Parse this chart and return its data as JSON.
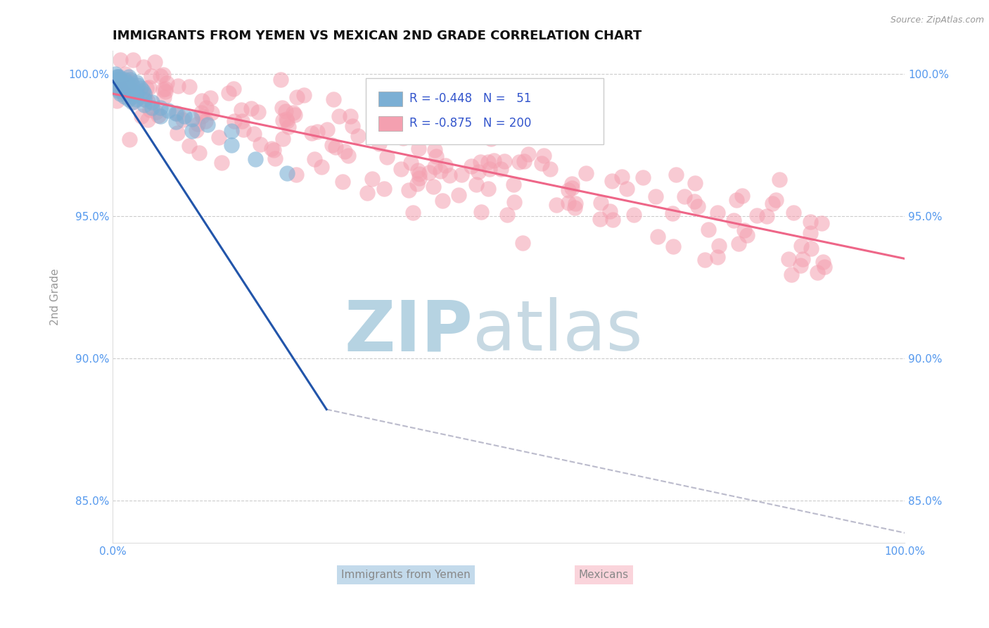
{
  "title": "IMMIGRANTS FROM YEMEN VS MEXICAN 2ND GRADE CORRELATION CHART",
  "source": "Source: ZipAtlas.com",
  "ylabel": "2nd Grade",
  "xlim": [
    0.0,
    1.0
  ],
  "ylim": [
    0.835,
    1.008
  ],
  "yticks": [
    0.85,
    0.9,
    0.95,
    1.0
  ],
  "ytick_labels": [
    "85.0%",
    "90.0%",
    "95.0%",
    "100.0%"
  ],
  "xticks": [
    0.0,
    1.0
  ],
  "xtick_labels": [
    "0.0%",
    "100.0%"
  ],
  "legend_R_blue": "-0.448",
  "legend_N_blue": "51",
  "legend_R_pink": "-0.875",
  "legend_N_pink": "200",
  "blue_color": "#7BAFD4",
  "pink_color": "#F4A0B0",
  "blue_line_color": "#2255AA",
  "pink_line_color": "#EE6688",
  "dashed_line_color": "#BBBBCC",
  "background_color": "#FFFFFF",
  "title_color": "#111111",
  "title_fontsize": 13,
  "tick_color": "#5599EE",
  "legend_text_color": "#3355CC",
  "watermark_zip_color": "#AACCDD",
  "watermark_atlas_color": "#99BBCC",
  "blue_x_points": [
    0.005,
    0.008,
    0.01,
    0.012,
    0.015,
    0.018,
    0.02,
    0.022,
    0.025,
    0.03,
    0.032,
    0.035,
    0.038,
    0.04,
    0.005,
    0.008,
    0.01,
    0.015,
    0.02,
    0.025,
    0.003,
    0.006,
    0.009,
    0.012,
    0.016,
    0.02,
    0.025,
    0.03,
    0.04,
    0.05,
    0.06,
    0.07,
    0.08,
    0.09,
    0.1,
    0.12,
    0.15,
    0.005,
    0.01,
    0.015,
    0.02,
    0.025,
    0.03,
    0.04,
    0.05,
    0.06,
    0.08,
    0.1,
    0.15,
    0.18,
    0.22
  ],
  "blue_y_points": [
    0.998,
    0.999,
    0.997,
    0.996,
    0.998,
    0.997,
    0.999,
    0.998,
    0.996,
    0.997,
    0.996,
    0.995,
    0.994,
    0.993,
    0.995,
    0.994,
    0.993,
    0.992,
    0.991,
    0.99,
    1.0,
    0.999,
    0.998,
    0.997,
    0.996,
    0.995,
    0.994,
    0.993,
    0.991,
    0.99,
    0.988,
    0.987,
    0.986,
    0.985,
    0.984,
    0.982,
    0.98,
    0.999,
    0.997,
    0.995,
    0.993,
    0.992,
    0.991,
    0.989,
    0.988,
    0.985,
    0.983,
    0.98,
    0.975,
    0.97,
    0.965
  ],
  "blue_line_x": [
    0.0,
    0.27
  ],
  "blue_line_y": [
    0.9975,
    0.882
  ],
  "pink_line_x": [
    0.0,
    1.0
  ],
  "pink_line_y": [
    0.993,
    0.935
  ],
  "dash_line_x": [
    0.27,
    1.01
  ],
  "dash_line_y": [
    0.882,
    0.838
  ],
  "n_pink": 200,
  "pink_seed": 77
}
